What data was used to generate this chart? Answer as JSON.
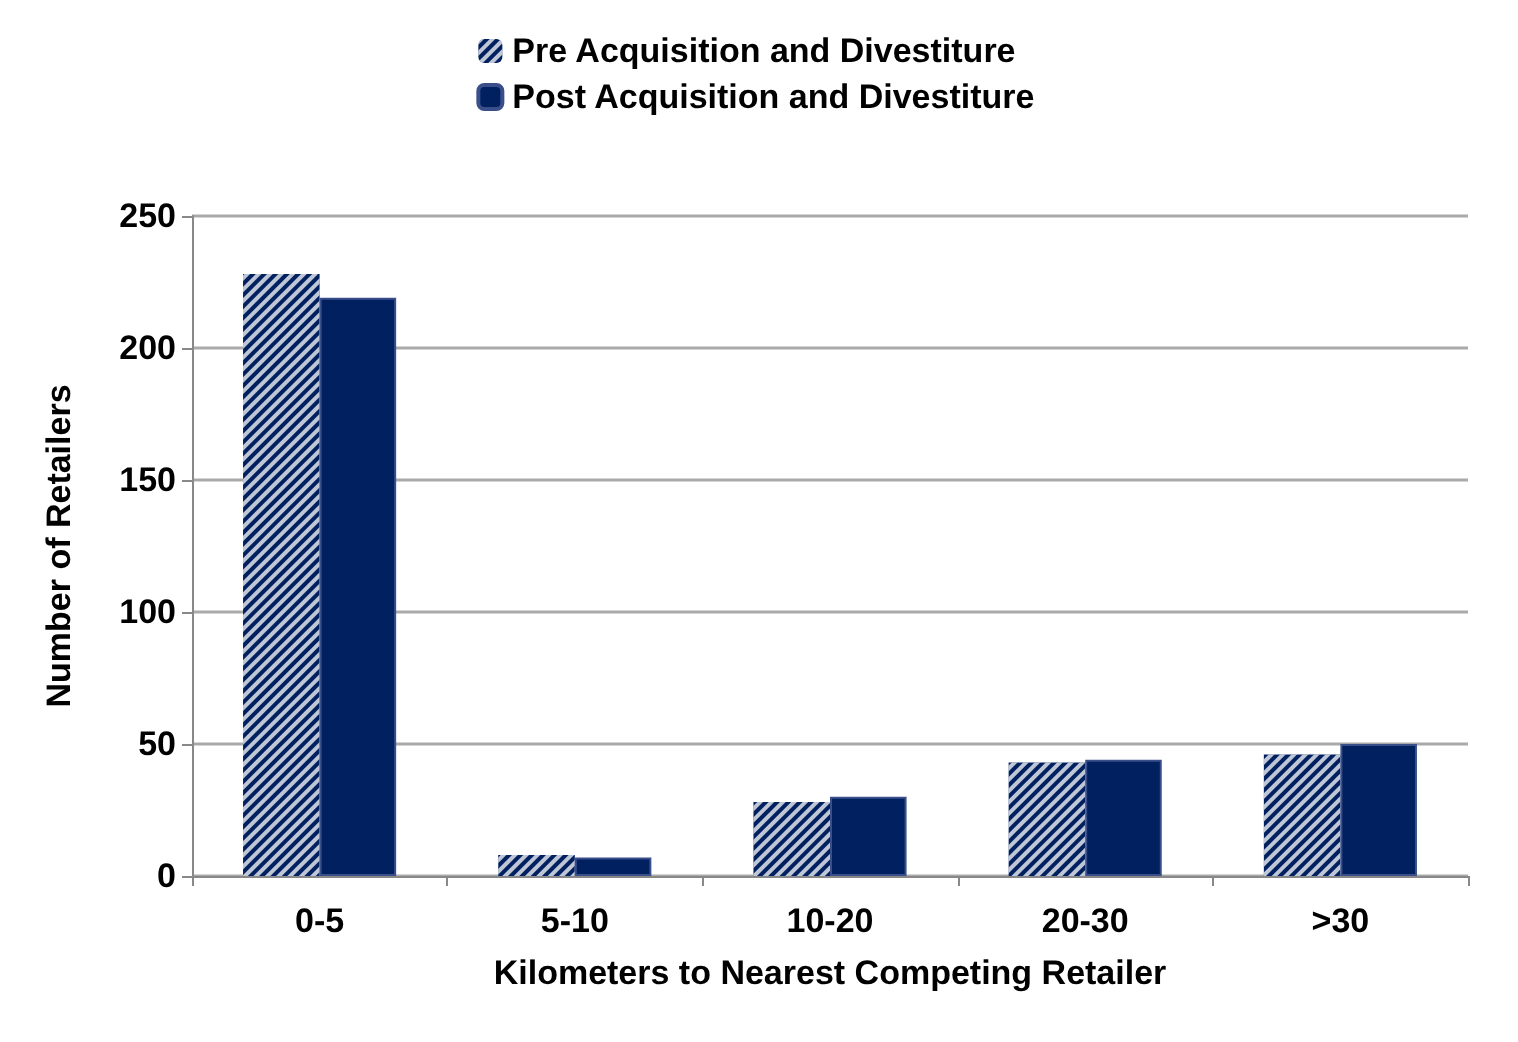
{
  "chart_data": {
    "type": "bar",
    "xlabel": "Kilometers to Nearest Competing Retailer",
    "ylabel": "Number of Retailers",
    "categories": [
      "0-5",
      "5-10",
      "10-20",
      "20-30",
      ">30"
    ],
    "series": [
      {
        "name": "Pre Acquisition and Divestiture",
        "color": "#002060",
        "values": [
          228,
          8,
          28,
          43,
          46
        ]
      },
      {
        "name": "Post Acquisition and Divestiture",
        "color": "#002060",
        "values": [
          219,
          7,
          30,
          44,
          50
        ]
      }
    ],
    "ylim": [
      0,
      250
    ],
    "yticks": [
      0,
      50,
      100,
      150,
      200,
      250
    ],
    "grid": "y",
    "legend": "top"
  }
}
